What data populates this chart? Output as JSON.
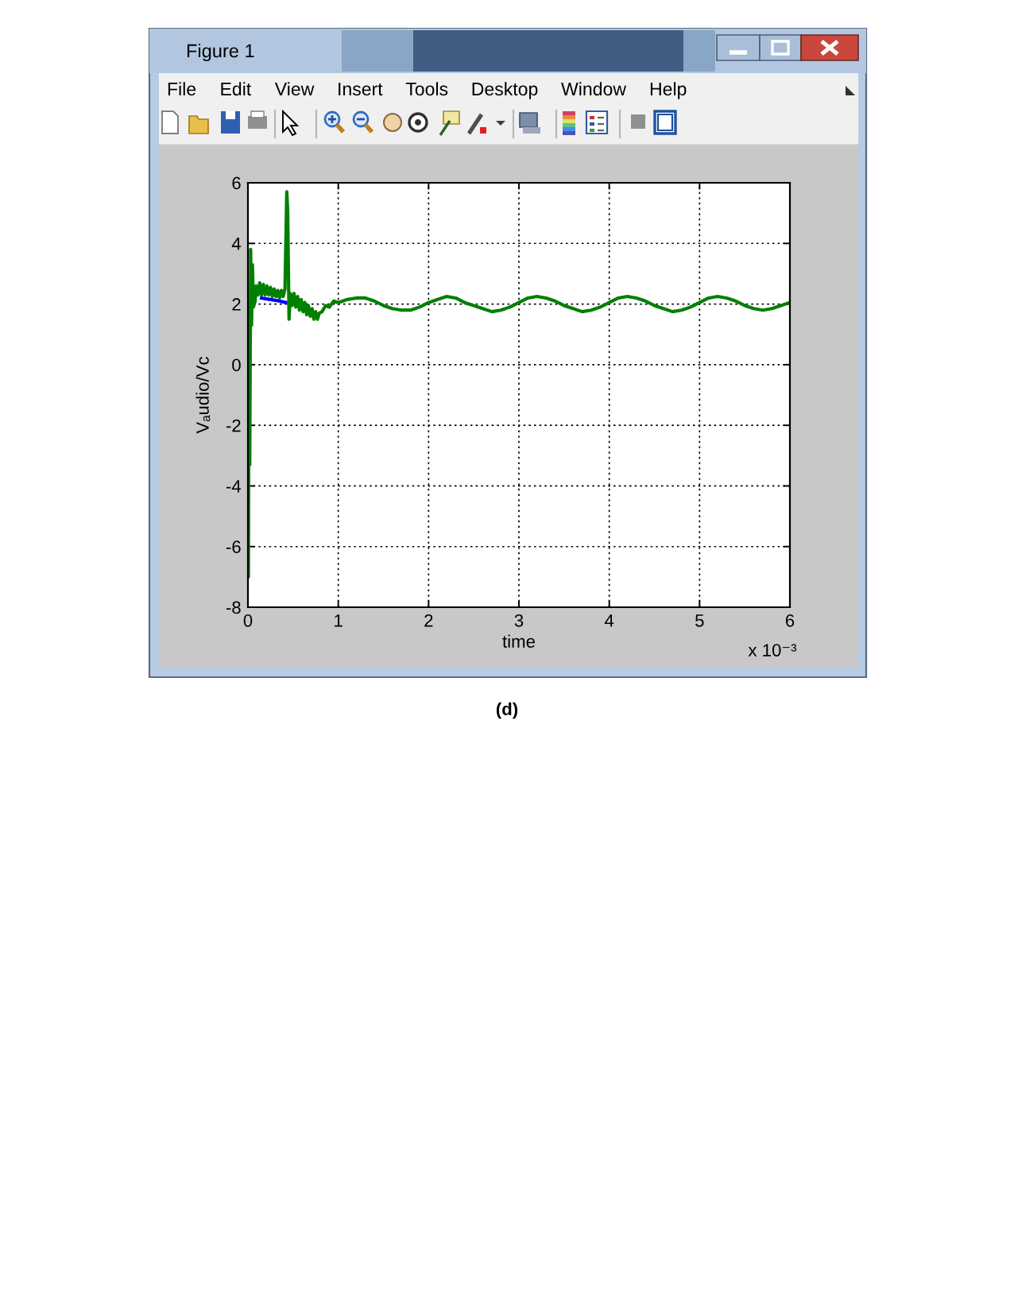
{
  "chart_data": {
    "type": "line",
    "xlabel": "time",
    "ylabel": "Vₐudio/Vc",
    "annotations": [
      "Figure 1",
      "File",
      "Edit",
      "View",
      "Insert",
      "Tools",
      "Desktop",
      "Window",
      "Help",
      "x 10⁻³",
      "(d)"
    ],
    "xlim": [
      0,
      6
    ],
    "xticks": [
      0,
      1,
      2,
      3,
      4,
      5,
      6
    ],
    "ylim": [
      -8,
      6
    ],
    "yticks": [
      -8,
      -6,
      -4,
      -2,
      0,
      2,
      4,
      6
    ],
    "grid": true,
    "line_style": "solid",
    "series": [
      {
        "color": "#0000ff",
        "x": [
          0.15,
          0.25,
          0.35,
          0.42
        ],
        "values": [
          2.2,
          2.15,
          2.1,
          2.05
        ]
      },
      {
        "color": "#008000",
        "x": [
          0,
          0.005,
          0.012,
          0.02,
          0.03,
          0.04,
          0.05,
          0.06,
          0.08,
          0.09,
          0.11,
          0.13,
          0.15,
          0.17,
          0.19,
          0.21,
          0.23,
          0.25,
          0.27,
          0.29,
          0.31,
          0.33,
          0.35,
          0.37,
          0.39,
          0.41,
          0.43,
          0.44,
          0.455,
          0.47,
          0.49,
          0.51,
          0.53,
          0.55,
          0.57,
          0.59,
          0.61,
          0.63,
          0.65,
          0.67,
          0.69,
          0.71,
          0.73,
          0.75,
          0.77,
          0.79,
          0.82,
          0.86,
          0.9,
          0.95,
          1.0,
          1.1,
          1.2,
          1.3,
          1.4,
          1.5,
          1.6,
          1.7,
          1.8,
          1.9,
          2.0,
          2.1,
          2.2,
          2.3,
          2.4,
          2.5,
          2.6,
          2.7,
          2.8,
          2.9,
          3.0,
          3.1,
          3.2,
          3.3,
          3.4,
          3.5,
          3.6,
          3.7,
          3.8,
          3.9,
          4.0,
          4.1,
          4.2,
          4.3,
          4.4,
          4.5,
          4.6,
          4.7,
          4.8,
          4.9,
          5.0,
          5.1,
          5.2,
          5.3,
          5.4,
          5.5,
          5.6,
          5.7,
          5.8,
          5.9,
          6.0
        ],
        "values": [
          0,
          -7,
          2,
          -3.3,
          3.8,
          1.3,
          3.3,
          1.9,
          2.1,
          2.6,
          2.3,
          2.7,
          2.3,
          2.65,
          2.3,
          2.6,
          2.3,
          2.55,
          2.25,
          2.5,
          2.25,
          2.45,
          2.2,
          2.45,
          2.25,
          2.5,
          5.7,
          5.1,
          1.5,
          2.35,
          1.95,
          2.35,
          1.9,
          2.25,
          1.8,
          2.15,
          1.75,
          2.05,
          1.65,
          1.95,
          1.6,
          1.85,
          1.5,
          1.75,
          1.5,
          1.7,
          1.75,
          1.95,
          1.9,
          2.1,
          2.05,
          2.15,
          2.2,
          2.2,
          2.1,
          1.95,
          1.85,
          1.8,
          1.8,
          1.9,
          2.05,
          2.15,
          2.25,
          2.2,
          2.05,
          1.95,
          1.85,
          1.75,
          1.8,
          1.9,
          2.05,
          2.2,
          2.25,
          2.2,
          2.1,
          1.95,
          1.85,
          1.75,
          1.8,
          1.9,
          2.05,
          2.2,
          2.25,
          2.2,
          2.1,
          1.95,
          1.85,
          1.75,
          1.8,
          1.9,
          2.05,
          2.2,
          2.25,
          2.2,
          2.1,
          1.95,
          1.85,
          1.8,
          1.85,
          1.95,
          2.05
        ]
      }
    ]
  }
}
